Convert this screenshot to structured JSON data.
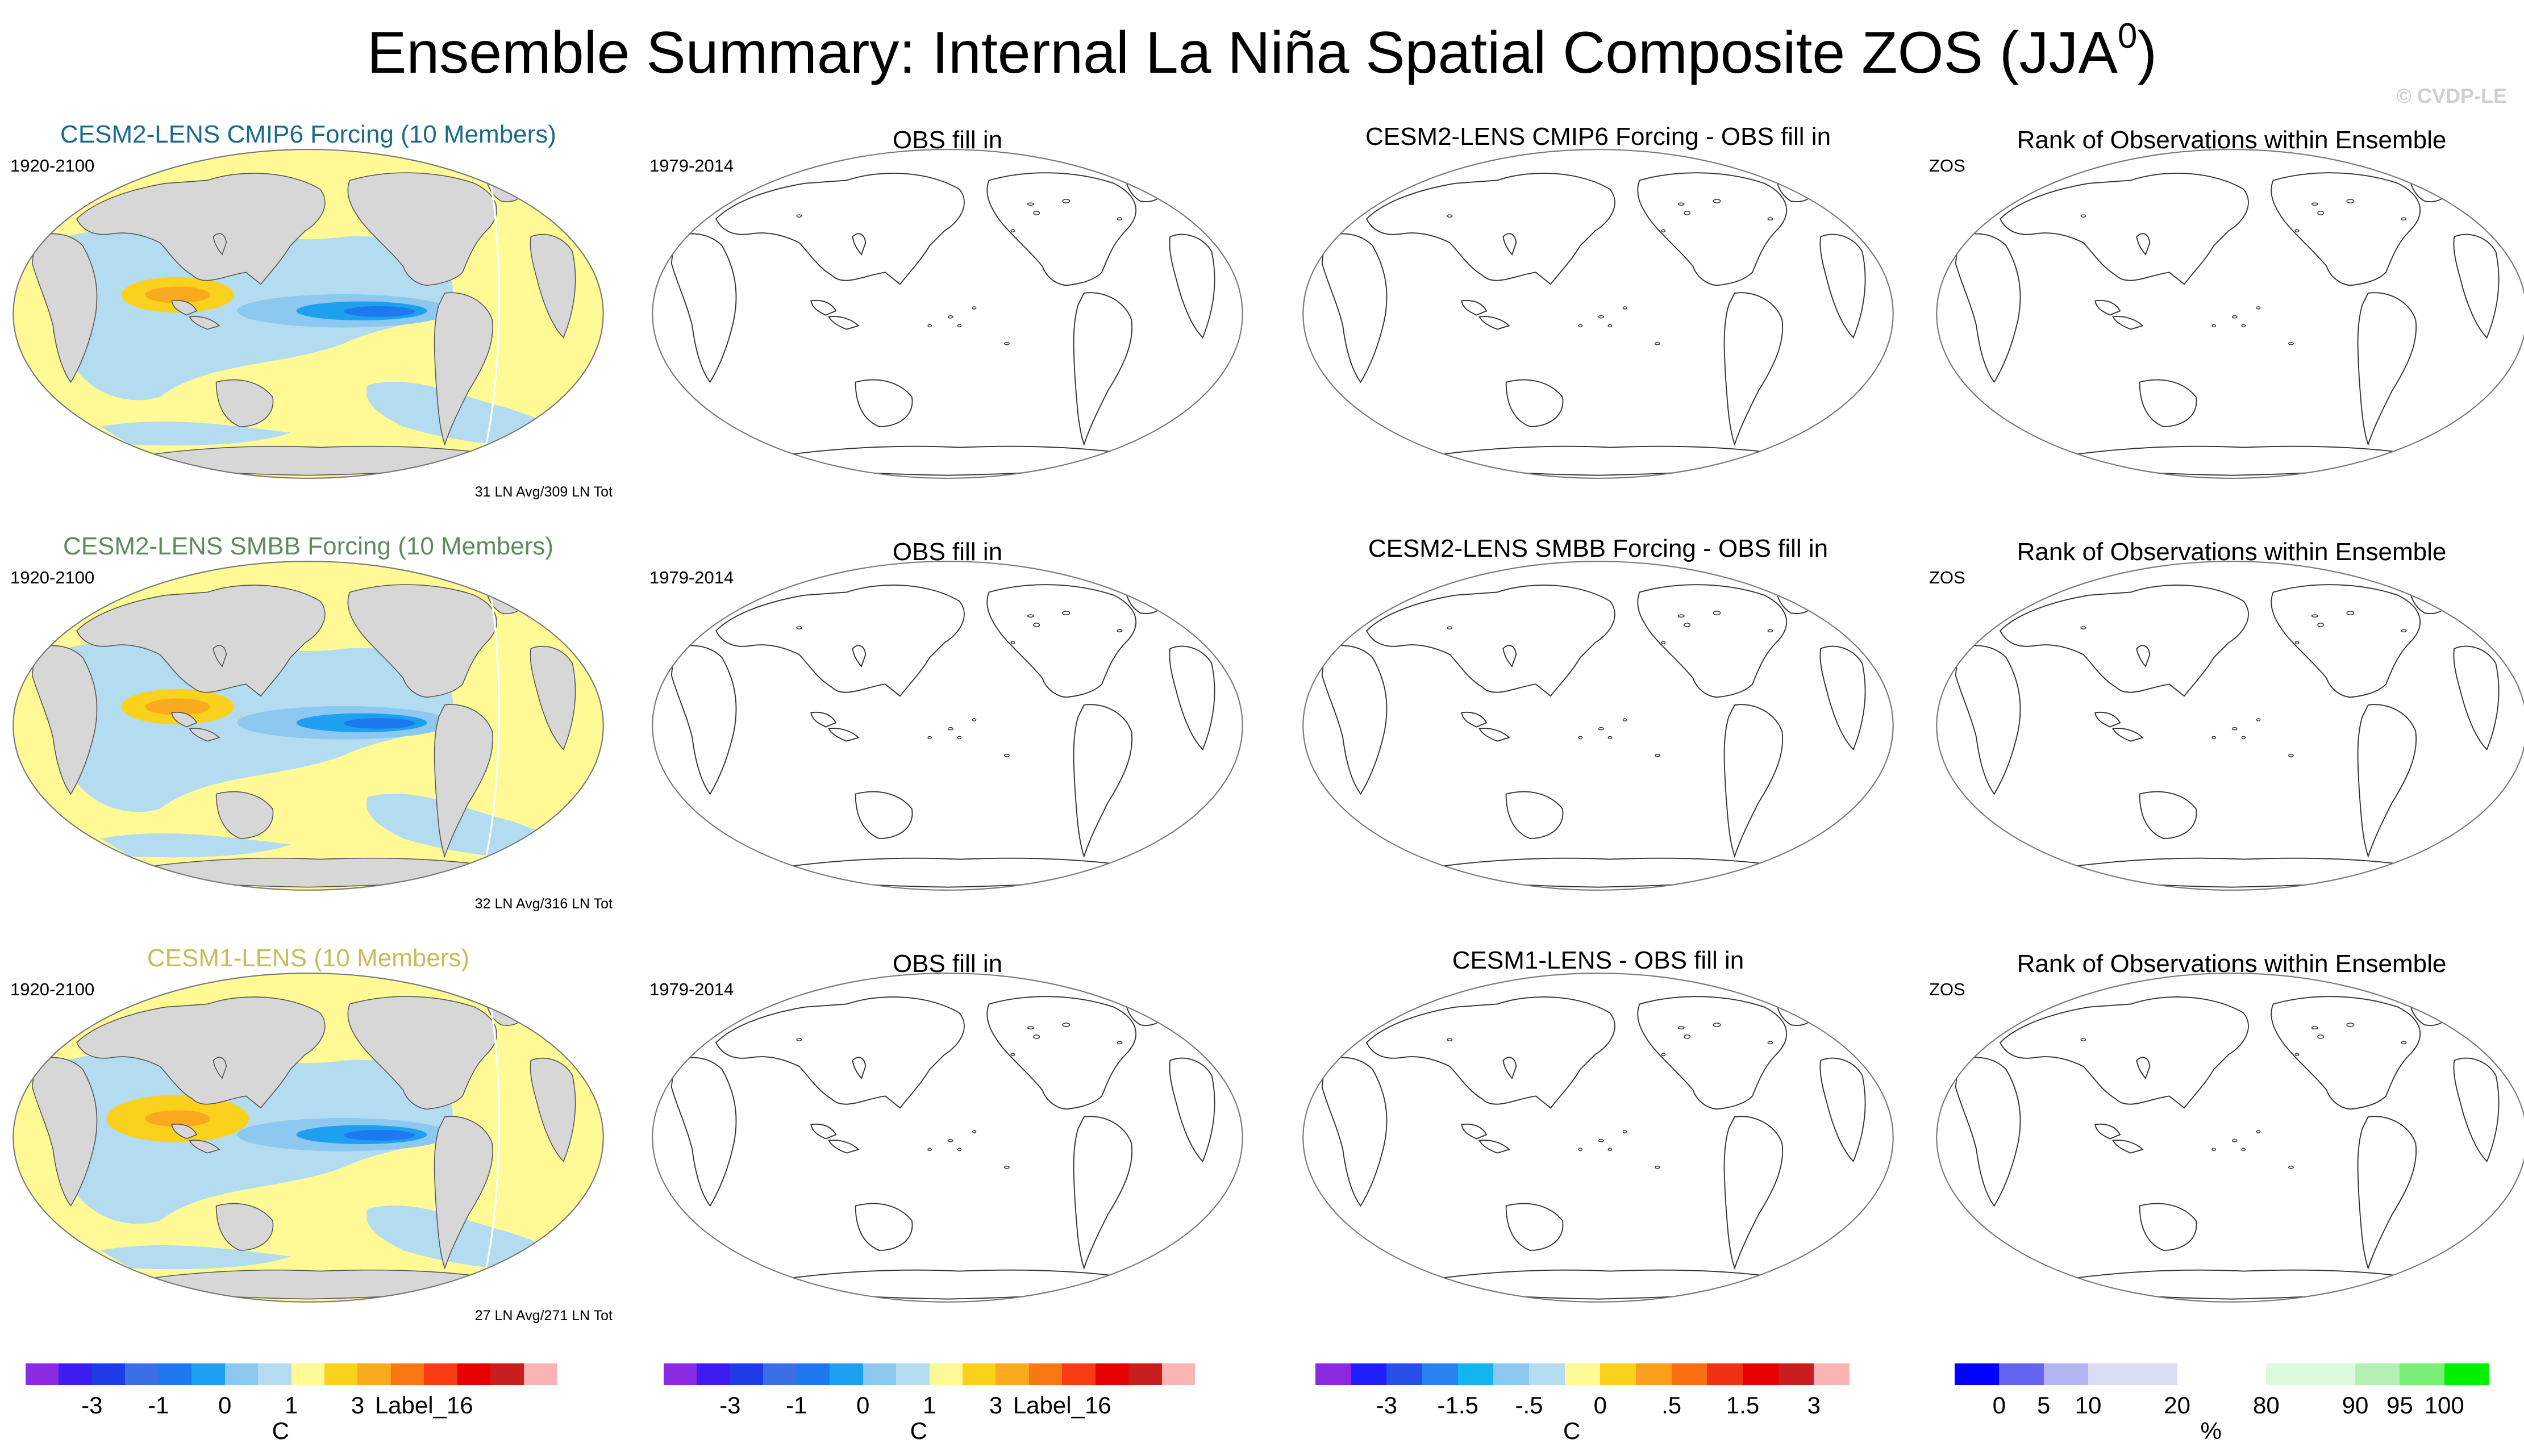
{
  "title": {
    "main": "Ensemble Summary: Internal La Niña Spatial Composite ZOS (JJA",
    "sup": "0",
    "close": ")"
  },
  "watermark": "© CVDP-LE",
  "rows": [
    {
      "model_title": "CESM2-LENS CMIP6 Forcing (10 Members)",
      "model_color": "#1a6a8a",
      "model_years": "1920-2100",
      "model_note": "31 LN Avg/309 LN Tot",
      "obs_title": "OBS fill in",
      "obs_years": "1979-2014",
      "diff_title": "CESM2-LENS CMIP6 Forcing - OBS fill in",
      "rank_title": "Rank of Observations within Ensemble",
      "rank_label": "ZOS"
    },
    {
      "model_title": "CESM2-LENS SMBB Forcing (10 Members)",
      "model_color": "#5f8a5f",
      "model_years": "1920-2100",
      "model_note": "32 LN Avg/316 LN Tot",
      "obs_title": "OBS fill in",
      "obs_years": "1979-2014",
      "diff_title": "CESM2-LENS SMBB Forcing - OBS fill in",
      "rank_title": "Rank of Observations within Ensemble",
      "rank_label": "ZOS"
    },
    {
      "model_title": "CESM1-LENS (10 Members)",
      "model_color": "#c8bc5a",
      "model_years": "1920-2100",
      "model_note": "27 LN Avg/271 LN Tot",
      "obs_title": "OBS fill in",
      "obs_years": "1979-2014",
      "diff_title": "CESM1-LENS - OBS fill in",
      "rank_title": "Rank of Observations within Ensemble",
      "rank_label": "ZOS"
    }
  ],
  "colorbars": [
    {
      "colors": [
        "#8a2be2",
        "#3c1cf0",
        "#1e3ce6",
        "#3c6ee6",
        "#1e78f0",
        "#1ea0f0",
        "#8cc8f0",
        "#b4dcf0",
        "#fffa96",
        "#fad21e",
        "#faaa1e",
        "#fa7814",
        "#fa3c14",
        "#e60000",
        "#c81e1e",
        "#fab4b4"
      ],
      "labels": [
        {
          "text": "-3",
          "at": 1
        },
        {
          "text": "-1",
          "at": 3
        },
        {
          "text": "0",
          "at": 5
        },
        {
          "text": "1",
          "at": 7
        },
        {
          "text": "3",
          "at": 9
        },
        {
          "text": "Label_16",
          "at": 11
        }
      ],
      "unit": "C"
    },
    {
      "colors": [
        "#8a2be2",
        "#3c1cf0",
        "#1e3ce6",
        "#3c6ee6",
        "#1e78f0",
        "#1ea0f0",
        "#8cc8f0",
        "#b4dcf0",
        "#fffa96",
        "#fad21e",
        "#faaa1e",
        "#fa7814",
        "#fa3c14",
        "#e60000",
        "#c81e1e",
        "#fab4b4"
      ],
      "labels": [
        {
          "text": "-3",
          "at": 1
        },
        {
          "text": "-1",
          "at": 3
        },
        {
          "text": "0",
          "at": 5
        },
        {
          "text": "1",
          "at": 7
        },
        {
          "text": "3",
          "at": 9
        },
        {
          "text": "Label_16",
          "at": 11
        }
      ],
      "unit": "C"
    },
    {
      "colors": [
        "#8a2be2",
        "#1e1eff",
        "#2850e6",
        "#2882f0",
        "#14b4f0",
        "#8cc8f0",
        "#b4dcf0",
        "#fffa96",
        "#fad21e",
        "#faa01e",
        "#fa6e14",
        "#f03214",
        "#e60000",
        "#c81e1e",
        "#fab4b4"
      ],
      "labels": [
        {
          "text": "-3",
          "at": 1
        },
        {
          "text": "-1.5",
          "at": 2
        },
        {
          "text": "-.5",
          "at": 3
        },
        {
          "text": "0",
          "at": 4
        },
        {
          "text": ".5",
          "at": 5
        },
        {
          "text": "1.5",
          "at": 6
        },
        {
          "text": "3",
          "at": 7
        }
      ],
      "unit": "C"
    },
    {
      "colors": [
        "#0000ff",
        "#6464f0",
        "#b4b4f0",
        "#dcdcf5",
        "#dcdcf5",
        "#ffffff",
        "#ffffff",
        "#dcfadc",
        "#dcfadc",
        "#b4f0b4",
        "#78f078",
        "#00f000"
      ],
      "labels": [
        {
          "text": "0",
          "at": 1
        },
        {
          "text": "5",
          "at": 2
        },
        {
          "text": "10",
          "at": 3
        },
        {
          "text": "20",
          "at": 5
        },
        {
          "text": "80",
          "at": 7
        },
        {
          "text": "90",
          "at": 9
        },
        {
          "text": "95",
          "at": 10
        },
        {
          "text": "100",
          "at": 11
        }
      ],
      "unit": "%"
    }
  ]
}
